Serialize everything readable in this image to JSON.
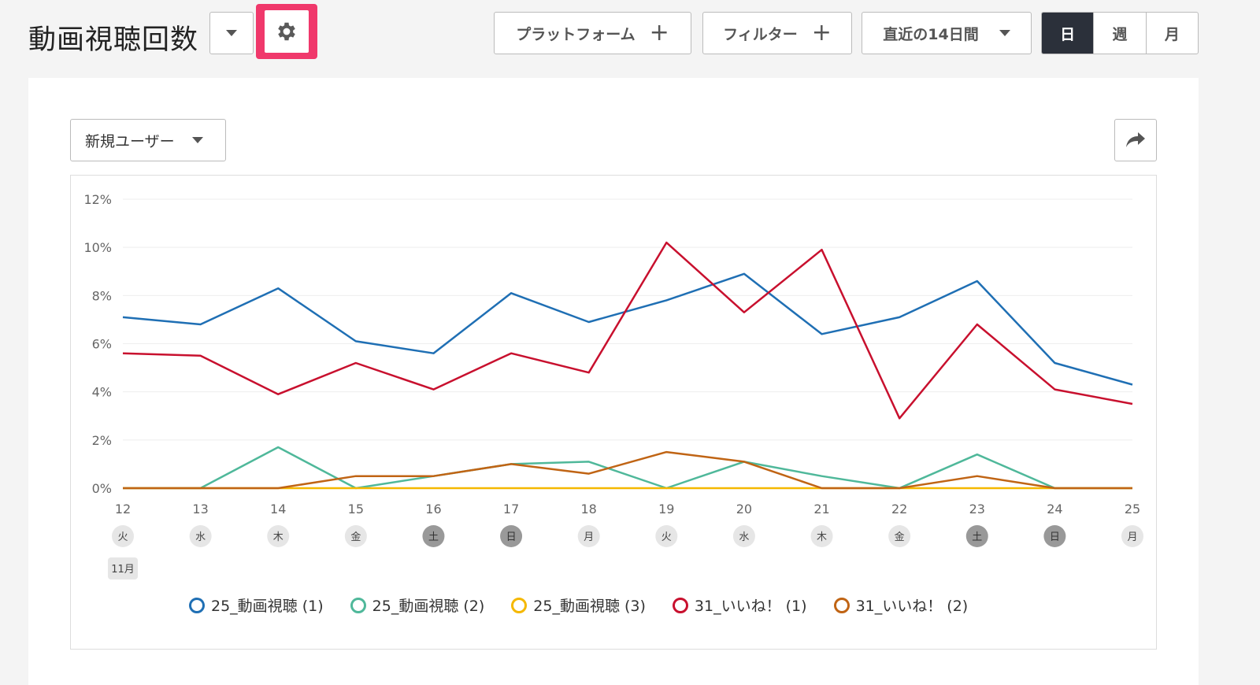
{
  "header": {
    "title": "動画視聴回数",
    "platform_label": "プラットフォーム",
    "filter_label": "フィルター",
    "period_label": "直近の14日間",
    "granularity": [
      "日",
      "週",
      "月"
    ],
    "selected_granularity": "日"
  },
  "toolbar": {
    "metric_label": "新規ユーザー"
  },
  "icons": {
    "title_dropdown": "chevron-down-icon",
    "settings": "gear-icon",
    "share": "share-icon"
  },
  "colors": {
    "highlight": "#f0386b",
    "active_segment": "#2b303a"
  },
  "chart_data": {
    "type": "line",
    "x": [
      "12",
      "13",
      "14",
      "15",
      "16",
      "17",
      "18",
      "19",
      "20",
      "21",
      "22",
      "23",
      "24",
      "25"
    ],
    "weekdays": [
      "火",
      "水",
      "木",
      "金",
      "土",
      "日",
      "月",
      "火",
      "水",
      "木",
      "金",
      "土",
      "日",
      "月"
    ],
    "weekend_flags": [
      false,
      false,
      false,
      false,
      true,
      true,
      false,
      false,
      false,
      false,
      false,
      true,
      true,
      false
    ],
    "month_label": "11月",
    "y_ticks": [
      "0%",
      "2%",
      "4%",
      "6%",
      "8%",
      "10%",
      "12%"
    ],
    "ylim": [
      0,
      12
    ],
    "grid": true,
    "legend_position": "bottom",
    "series": [
      {
        "name": "25_動画視聴 (1)",
        "color": "#1f6fb4",
        "values": [
          7.1,
          6.8,
          8.3,
          6.1,
          5.6,
          8.1,
          6.9,
          7.8,
          8.9,
          6.4,
          7.1,
          8.6,
          5.2,
          4.3
        ]
      },
      {
        "name": "25_動画視聴 (2)",
        "color": "#4fb89a",
        "values": [
          0,
          0,
          1.7,
          0,
          0.5,
          1.0,
          1.1,
          0,
          1.1,
          0.5,
          0,
          1.4,
          0,
          0
        ]
      },
      {
        "name": "25_動画視聴 (3)",
        "color": "#f5b800",
        "values": [
          0,
          0,
          0,
          0,
          0,
          0,
          0,
          0,
          0,
          0,
          0,
          0,
          0,
          0
        ]
      },
      {
        "name": "31_いいね！ (1)",
        "color": "#c8102e",
        "values": [
          5.6,
          5.5,
          3.9,
          5.2,
          4.1,
          5.6,
          4.8,
          10.2,
          7.3,
          9.9,
          2.9,
          6.8,
          4.1,
          3.5
        ]
      },
      {
        "name": "31_いいね！ (2)",
        "color": "#c06414",
        "values": [
          0,
          0,
          0,
          0.5,
          0.5,
          1.0,
          0.6,
          1.5,
          1.1,
          0,
          0,
          0.5,
          0,
          0
        ]
      }
    ]
  }
}
